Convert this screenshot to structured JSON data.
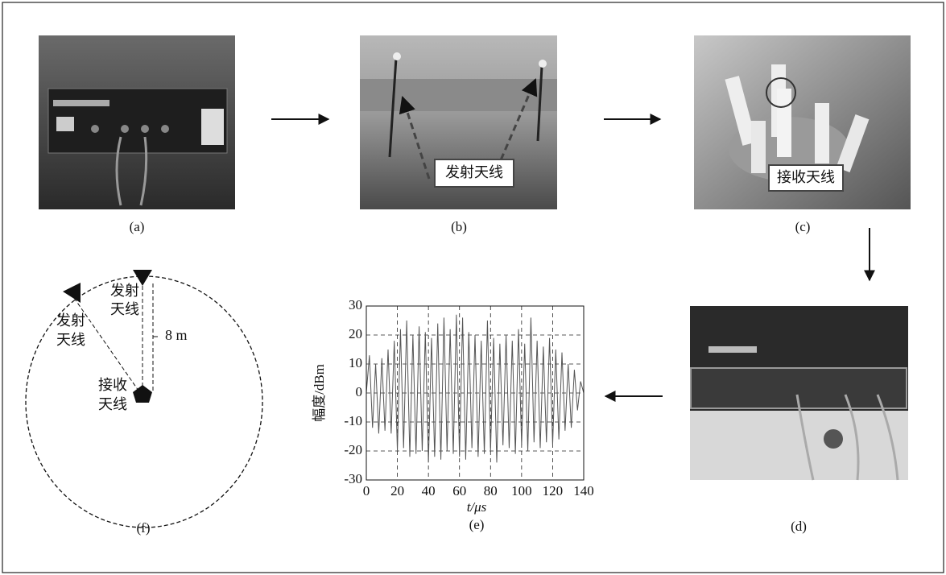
{
  "panels": {
    "a": "(a)",
    "b": "(b)",
    "c": "(c)",
    "d": "(d)",
    "f": "(f)"
  },
  "photo_b": {
    "annotation": "发射天线"
  },
  "photo_c": {
    "annotation": "接收天线"
  },
  "diagram": {
    "transmit_top": [
      "发射",
      "天线"
    ],
    "transmit_left": [
      "发射",
      "天线"
    ],
    "receive": [
      "接收",
      "天线"
    ],
    "distance": "8 m"
  },
  "chart_data": {
    "type": "line",
    "panel_label": "(e)",
    "xlabel": "t/μs",
    "ylabel": "幅度/dBm",
    "x": [
      0,
      2,
      4,
      6,
      8,
      10,
      12,
      14,
      16,
      18,
      20,
      22,
      24,
      26,
      28,
      30,
      32,
      34,
      36,
      38,
      40,
      42,
      44,
      46,
      48,
      50,
      52,
      54,
      56,
      58,
      60,
      62,
      64,
      66,
      68,
      70,
      72,
      74,
      76,
      78,
      80,
      82,
      84,
      86,
      88,
      90,
      92,
      94,
      96,
      98,
      100,
      102,
      104,
      106,
      108,
      110,
      112,
      114,
      116,
      118,
      120,
      122,
      124,
      126,
      128,
      130,
      132,
      134,
      136,
      138,
      140
    ],
    "values": [
      0,
      13,
      -12,
      10,
      -14,
      12,
      -13,
      15,
      -14,
      18,
      -20,
      22,
      -19,
      25,
      -22,
      20,
      -21,
      23,
      -20,
      21,
      -24,
      19,
      -22,
      24,
      -23,
      26,
      -20,
      22,
      -21,
      27,
      -22,
      26,
      -23,
      21,
      -19,
      20,
      -22,
      18,
      -21,
      25,
      -20,
      19,
      -24,
      17,
      -18,
      20,
      -19,
      18,
      -21,
      22,
      -18,
      17,
      -20,
      26,
      -17,
      18,
      -19,
      16,
      -17,
      19,
      -18,
      15,
      -16,
      14,
      -13,
      10,
      -12,
      8,
      -6,
      4,
      0
    ],
    "color": "#555555",
    "xlim": [
      0,
      140
    ],
    "xticks": [
      0,
      20,
      40,
      60,
      80,
      100,
      120,
      140
    ],
    "ylim": [
      -30,
      30
    ],
    "yticks": [
      -30,
      -20,
      -10,
      0,
      10,
      20,
      30
    ],
    "grid": true
  }
}
